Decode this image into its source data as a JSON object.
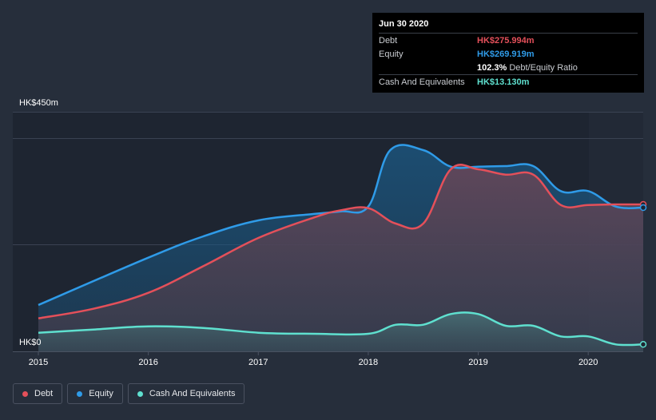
{
  "tooltip": {
    "date": "Jun 30 2020",
    "rows": [
      {
        "label": "Debt",
        "value": "HK$275.994m",
        "color": "#e4505a"
      },
      {
        "label": "Equity",
        "value": "HK$269.919m",
        "color": "#2f9be8"
      },
      {
        "label": "",
        "value": "102.3%",
        "extra": "Debt/Equity Ratio",
        "color": "#ffffff"
      },
      {
        "label": "Cash And Equivalents",
        "value": "HK$13.130m",
        "color": "#5fe0cf"
      }
    ]
  },
  "legend": [
    {
      "label": "Debt",
      "color": "#e4505a"
    },
    {
      "label": "Equity",
      "color": "#2f9be8"
    },
    {
      "label": "Cash And Equivalents",
      "color": "#5fe0cf"
    }
  ],
  "chart_data": {
    "type": "area",
    "title": "",
    "xlabel": "",
    "ylabel": "",
    "y_unit": "HK$m",
    "y_tick_labels": [
      "HK$0",
      "HK$450m"
    ],
    "ylim": [
      0,
      450
    ],
    "xlim": [
      2015.0,
      2020.5
    ],
    "x_tick_labels": [
      "2015",
      "2016",
      "2017",
      "2018",
      "2019",
      "2020"
    ],
    "x_ticks": [
      2015,
      2016,
      2017,
      2018,
      2019,
      2020
    ],
    "series": [
      {
        "name": "Equity",
        "color": "#2f9be8",
        "x": [
          2015.0,
          2016.0,
          2016.5,
          2017.0,
          2017.5,
          2017.75,
          2018.0,
          2018.2,
          2018.5,
          2018.75,
          2019.0,
          2019.25,
          2019.5,
          2019.75,
          2020.0,
          2020.25,
          2020.5
        ],
        "values": [
          87,
          176,
          216,
          246,
          258,
          263,
          272,
          378,
          378,
          347,
          347,
          348,
          348,
          301,
          301,
          272,
          270
        ]
      },
      {
        "name": "Debt",
        "color": "#e4505a",
        "x": [
          2015.0,
          2015.5,
          2016.0,
          2016.5,
          2017.0,
          2017.5,
          2017.75,
          2018.0,
          2018.25,
          2018.5,
          2018.75,
          2019.0,
          2019.25,
          2019.5,
          2019.75,
          2020.0,
          2020.25,
          2020.5
        ],
        "values": [
          62,
          80,
          110,
          160,
          213,
          251,
          265,
          269,
          240,
          240,
          342,
          342,
          332,
          332,
          275,
          275,
          276,
          276
        ]
      },
      {
        "name": "Cash And Equivalents",
        "color": "#5fe0cf",
        "x": [
          2015.0,
          2015.5,
          2016.0,
          2016.5,
          2017.0,
          2017.5,
          2018.0,
          2018.25,
          2018.5,
          2018.75,
          2019.0,
          2019.25,
          2019.5,
          2019.75,
          2020.0,
          2020.25,
          2020.5
        ],
        "values": [
          35,
          41,
          47,
          44,
          35,
          33,
          33,
          50,
          50,
          70,
          70,
          48,
          48,
          28,
          28,
          13,
          13
        ]
      }
    ]
  }
}
